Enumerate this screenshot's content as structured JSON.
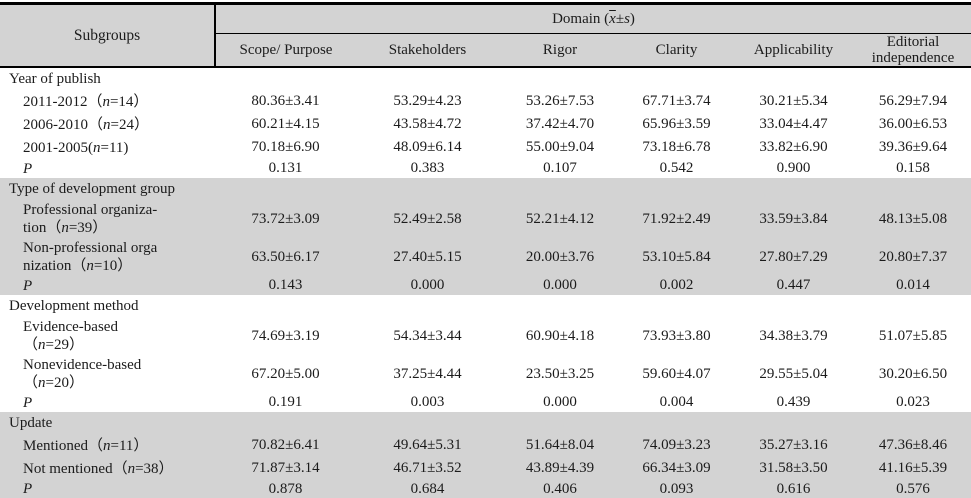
{
  "colors": {
    "header_fill": "#d3d3d3",
    "shaded_section_fill": "#d3d3d3",
    "text": "#1b1b1b",
    "border": "#000000"
  },
  "table": {
    "header": {
      "subgroups": "Subgroups",
      "domain_prefix": "Domain (",
      "domain_xbar": "x",
      "domain_pm": "±",
      "domain_s": "s",
      "domain_suffix": ")",
      "columns": [
        "Scope/ Purpose",
        "Stakeholders",
        "Rigor",
        "Clarity",
        "Applicability",
        "Editorial independence"
      ]
    },
    "sections": [
      {
        "title": "Year of publish",
        "shaded": false,
        "rows": [
          {
            "label": [
              {
                "t": "2011-2012（"
              },
              {
                "t": "n",
                "i": true
              },
              {
                "t": "=14）"
              }
            ],
            "values": [
              "80.36±3.41",
              "53.29±4.23",
              "53.26±7.53",
              "67.71±3.74",
              "30.21±5.34",
              "56.29±7.94"
            ]
          },
          {
            "label": [
              {
                "t": "2006-2010（"
              },
              {
                "t": "n",
                "i": true
              },
              {
                "t": "=24）"
              }
            ],
            "values": [
              "60.21±4.15",
              "43.58±4.72",
              "37.42±4.70",
              "65.96±3.59",
              "33.04±4.47",
              "36.00±6.53"
            ]
          },
          {
            "label": [
              {
                "t": "2001-2005("
              },
              {
                "t": "n",
                "i": true
              },
              {
                "t": "=11)"
              }
            ],
            "values": [
              "70.18±6.90",
              "48.09±6.14",
              "55.00±9.04",
              "73.18±6.78",
              "33.82±6.90",
              "39.36±9.64"
            ]
          },
          {
            "label": [
              {
                "t": "P",
                "i": true
              }
            ],
            "values": [
              "0.131",
              "0.383",
              "0.107",
              "0.542",
              "0.900",
              "0.158"
            ]
          }
        ]
      },
      {
        "title": "Type of development group",
        "shaded": true,
        "rows": [
          {
            "label": [
              {
                "t": "Professional organiza-"
              },
              {
                "br": true
              },
              {
                "t": "tion（"
              },
              {
                "t": "n",
                "i": true
              },
              {
                "t": "=39）"
              }
            ],
            "values": [
              "73.72±3.09",
              "52.49±2.58",
              "52.21±4.12",
              "71.92±2.49",
              "33.59±3.84",
              "48.13±5.08"
            ]
          },
          {
            "label": [
              {
                "t": "Non-professional orga"
              },
              {
                "br": true
              },
              {
                "t": "nization（"
              },
              {
                "t": "n",
                "i": true
              },
              {
                "t": "=10）"
              }
            ],
            "values": [
              "63.50±6.17",
              "27.40±5.15",
              "20.00±3.76",
              "53.10±5.84",
              "27.80±7.29",
              "20.80±7.37"
            ]
          },
          {
            "label": [
              {
                "t": "P",
                "i": true
              }
            ],
            "values": [
              "0.143",
              "0.000",
              "0.000",
              "0.002",
              "0.447",
              "0.014"
            ]
          }
        ]
      },
      {
        "title": "Development method",
        "shaded": false,
        "rows": [
          {
            "label": [
              {
                "t": "Evidence-based"
              },
              {
                "br": true
              },
              {
                "t": "（"
              },
              {
                "t": "n",
                "i": true
              },
              {
                "t": "=29）"
              }
            ],
            "values": [
              "74.69±3.19",
              "54.34±3.44",
              "60.90±4.18",
              "73.93±3.80",
              "34.38±3.79",
              "51.07±5.85"
            ]
          },
          {
            "label": [
              {
                "t": "Nonevidence-based"
              },
              {
                "br": true
              },
              {
                "t": "（"
              },
              {
                "t": "n",
                "i": true
              },
              {
                "t": "=20）"
              }
            ],
            "values": [
              "67.20±5.00",
              "37.25±4.44",
              "23.50±3.25",
              "59.60±4.07",
              "29.55±5.04",
              "30.20±6.50"
            ]
          },
          {
            "label": [
              {
                "t": "P",
                "i": true
              }
            ],
            "values": [
              "0.191",
              "0.003",
              "0.000",
              "0.004",
              "0.439",
              "0.023"
            ]
          }
        ]
      },
      {
        "title": "Update",
        "shaded": true,
        "rows": [
          {
            "label": [
              {
                "t": "Mentioned（"
              },
              {
                "t": "n",
                "i": true
              },
              {
                "t": "=11）"
              }
            ],
            "values": [
              "70.82±6.41",
              "49.64±5.31",
              "51.64±8.04",
              "74.09±3.23",
              "35.27±3.16",
              "47.36±8.46"
            ]
          },
          {
            "label": [
              {
                "t": "Not mentioned（"
              },
              {
                "t": "n",
                "i": true
              },
              {
                "t": "=38）"
              }
            ],
            "values": [
              "71.87±3.14",
              "46.71±3.52",
              "43.89±4.39",
              "66.34±3.09",
              "31.58±3.50",
              "41.16±5.39"
            ]
          },
          {
            "label": [
              {
                "t": "P",
                "i": true
              }
            ],
            "values": [
              "0.878",
              "0.684",
              "0.406",
              "0.093",
              "0.616",
              "0.576"
            ]
          }
        ]
      }
    ]
  }
}
